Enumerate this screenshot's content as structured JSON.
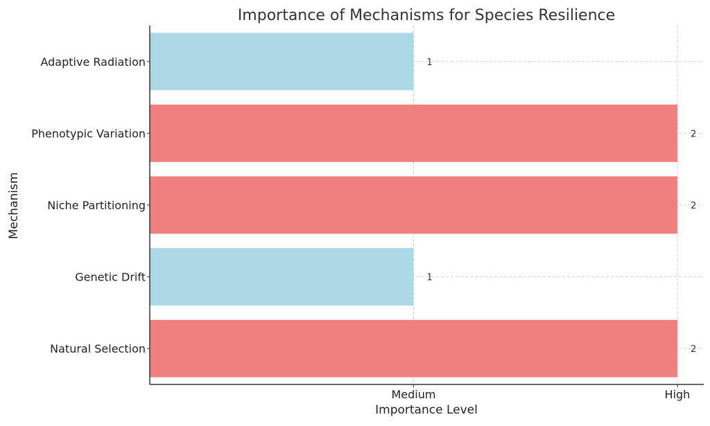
{
  "chart_data": {
    "type": "bar",
    "orientation": "horizontal",
    "title": "Importance of Mechanisms for Species Resilience",
    "xlabel": "Importance Level",
    "ylabel": "Mechanism",
    "categories": [
      "Adaptive Radiation",
      "Phenotypic Variation",
      "Niche Partitioning",
      "Genetic Drift",
      "Natural Selection"
    ],
    "values": [
      1,
      2,
      2,
      1,
      2
    ],
    "value_labels": [
      "1",
      "2",
      "2",
      "1",
      "2"
    ],
    "bar_colors": [
      "#add8e6",
      "#f08080",
      "#f08080",
      "#add8e6",
      "#f08080"
    ],
    "xlim": [
      0,
      2.1
    ],
    "xticks": [
      {
        "value": 1,
        "label": "Medium"
      },
      {
        "value": 2,
        "label": "High"
      }
    ],
    "grid": true,
    "legend": "none"
  }
}
